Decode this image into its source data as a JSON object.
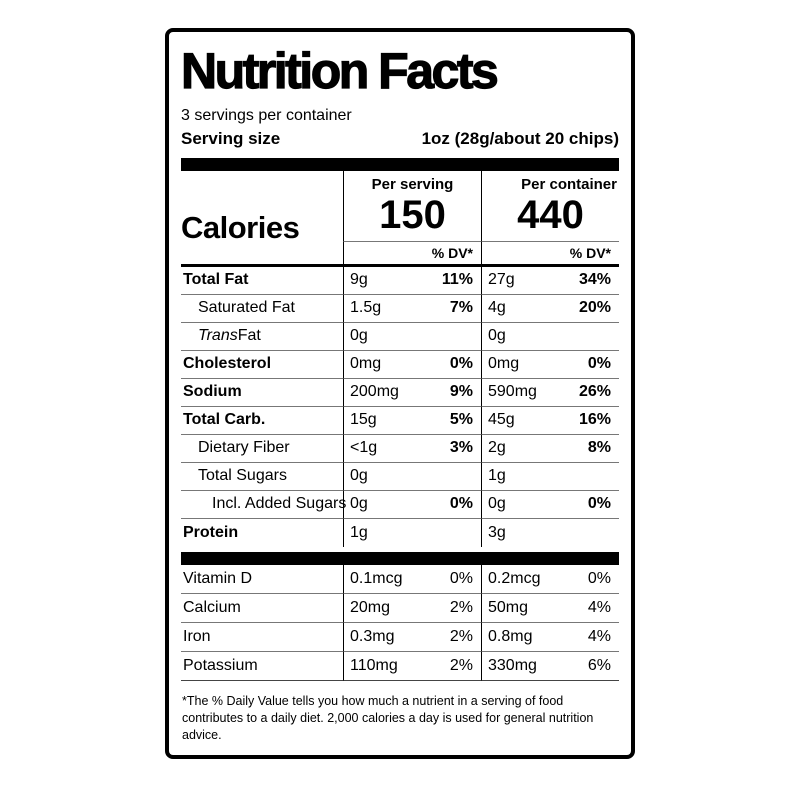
{
  "label": {
    "title": "Nutrition Facts",
    "servings_per_container": "3 servings per container",
    "serving_size_label": "Serving size",
    "serving_size_value": "1oz (28g/about 20 chips)",
    "headers": {
      "per_serving": "Per serving",
      "per_container": "Per container"
    },
    "calories": {
      "label": "Calories",
      "per_serving": "150",
      "per_container": "440"
    },
    "dv_header": "% DV*",
    "rows": [
      {
        "name": "Total Fat",
        "bold": true,
        "indent": 0,
        "s_amt": "9g",
        "s_dv": "11%",
        "c_amt": "27g",
        "c_dv": "34%"
      },
      {
        "name": "Saturated Fat",
        "bold": false,
        "indent": 1,
        "s_amt": "1.5g",
        "s_dv": "7%",
        "c_amt": "4g",
        "c_dv": "20%"
      },
      {
        "name_italic": "Trans",
        "name": " Fat",
        "bold": false,
        "indent": 1,
        "s_amt": "0g",
        "s_dv": "",
        "c_amt": "0g",
        "c_dv": ""
      },
      {
        "name": "Cholesterol",
        "bold": true,
        "indent": 0,
        "s_amt": "0mg",
        "s_dv": "0%",
        "c_amt": "0mg",
        "c_dv": "0%"
      },
      {
        "name": "Sodium",
        "bold": true,
        "indent": 0,
        "s_amt": "200mg",
        "s_dv": "9%",
        "c_amt": "590mg",
        "c_dv": "26%"
      },
      {
        "name": "Total Carb.",
        "bold": true,
        "indent": 0,
        "s_amt": "15g",
        "s_dv": "5%",
        "c_amt": "45g",
        "c_dv": "16%"
      },
      {
        "name": "Dietary Fiber",
        "bold": false,
        "indent": 1,
        "s_amt": "<1g",
        "s_dv": "3%",
        "c_amt": "2g",
        "c_dv": "8%"
      },
      {
        "name": "Total Sugars",
        "bold": false,
        "indent": 1,
        "s_amt": "0g",
        "s_dv": "",
        "c_amt": "1g",
        "c_dv": ""
      },
      {
        "name": "Incl. Added Sugars",
        "bold": false,
        "indent": 2,
        "s_amt": "0g",
        "s_dv": "0%",
        "c_amt": "0g",
        "c_dv": "0%"
      },
      {
        "name": "Protein",
        "bold": true,
        "indent": 0,
        "s_amt": "1g",
        "s_dv": "",
        "c_amt": "3g",
        "c_dv": ""
      }
    ],
    "micros": [
      {
        "name": "Vitamin D",
        "s_amt": "0.1mcg",
        "s_dv": "0%",
        "c_amt": "0.2mcg",
        "c_dv": "0%"
      },
      {
        "name": "Calcium",
        "s_amt": "20mg",
        "s_dv": "2%",
        "c_amt": "50mg",
        "c_dv": "4%"
      },
      {
        "name": "Iron",
        "s_amt": "0.3mg",
        "s_dv": "2%",
        "c_amt": "0.8mg",
        "c_dv": "4%"
      },
      {
        "name": "Potassium",
        "s_amt": "110mg",
        "s_dv": "2%",
        "c_amt": "330mg",
        "c_dv": "6%"
      }
    ],
    "footnote": "*The % Daily Value tells you how much a nutrient in a serving of food contributes to a daily diet. 2,000 calories a day is used for general nutrition advice."
  }
}
